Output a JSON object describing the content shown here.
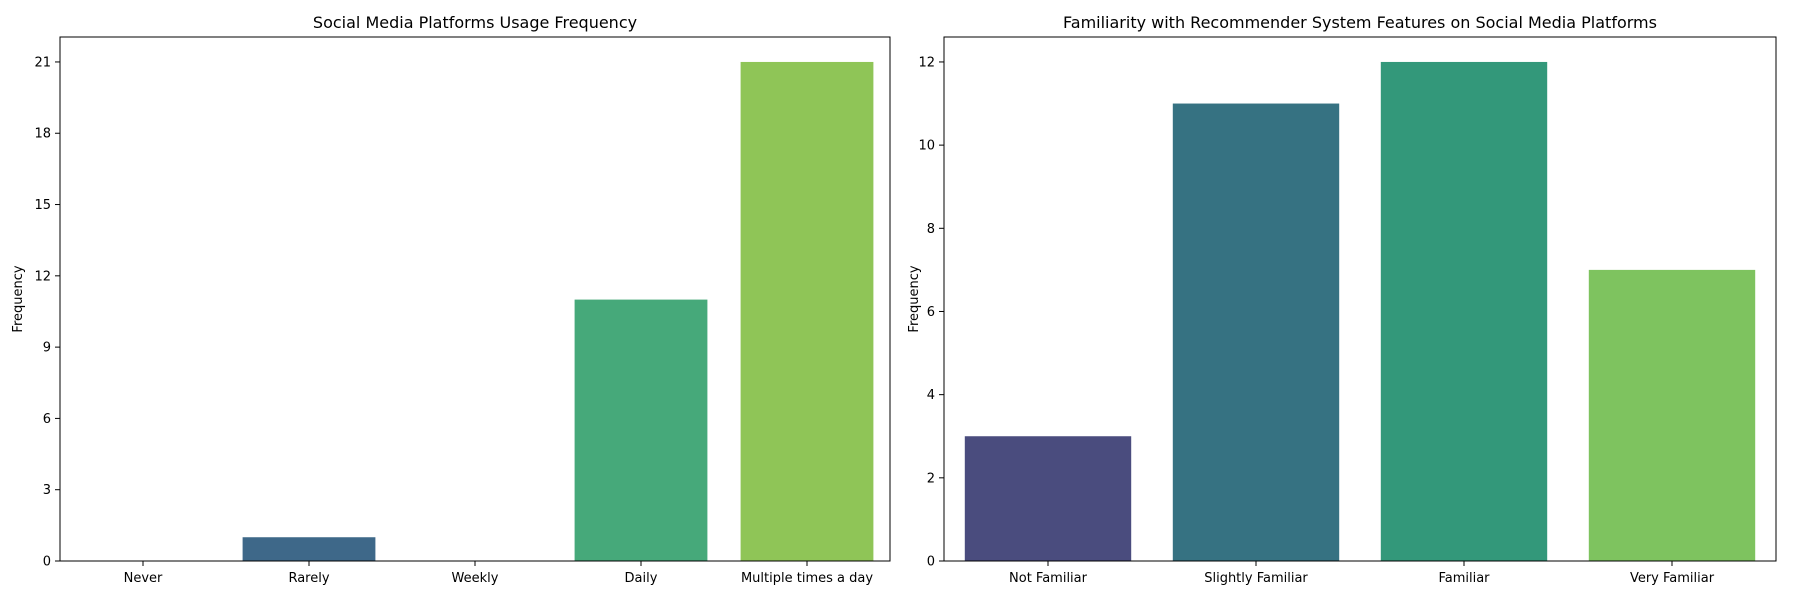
{
  "chart_data": [
    {
      "type": "bar",
      "title": "Social Media Platforms Usage Frequency",
      "xlabel": "",
      "ylabel": "Frequency",
      "categories": [
        "Never",
        "Rarely",
        "Weekly",
        "Daily",
        "Multiple times a day"
      ],
      "values": [
        0,
        1,
        0,
        11,
        21
      ],
      "colors": [
        "#46327e",
        "#3e6889",
        "#2e8e8c",
        "#46a97a",
        "#8fc557"
      ],
      "ylim": [
        0,
        22.05
      ],
      "yticks": [
        0,
        3,
        6,
        9,
        12,
        15,
        18,
        21
      ],
      "grid": false
    },
    {
      "type": "bar",
      "title": "Familiarity with Recommender System Features on Social Media Platforms",
      "xlabel": "",
      "ylabel": "Frequency",
      "categories": [
        "Not Familiar",
        "Slightly Familiar",
        "Familiar",
        "Very Familiar"
      ],
      "values": [
        3,
        11,
        12,
        7
      ],
      "colors": [
        "#4a4c7e",
        "#367282",
        "#33987a",
        "#7ec35f"
      ],
      "ylim": [
        0,
        12.6
      ],
      "yticks": [
        0,
        2,
        4,
        6,
        8,
        10,
        12
      ],
      "grid": false
    }
  ]
}
